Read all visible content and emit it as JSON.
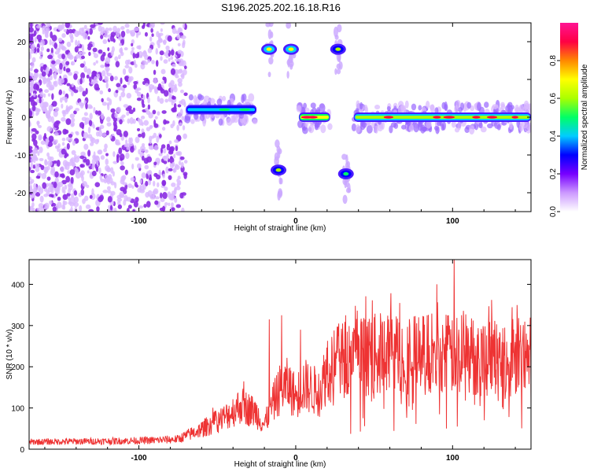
{
  "title": "S196.2025.202.16.18.R16",
  "chart_data": [
    {
      "type": "heatmap",
      "xlabel": "Height of straight line (km)",
      "ylabel": "Frequency (Hz)",
      "xlim": [
        -170,
        150
      ],
      "ylim": [
        -25,
        25
      ],
      "x_ticks": [
        "-100",
        "0",
        "100"
      ],
      "y_ticks": [
        "-20",
        "-10",
        "0",
        "10",
        "20"
      ],
      "colorbar": {
        "label": "Normalized spectral amplitude",
        "range": [
          0,
          1
        ],
        "ticks": [
          "0.0",
          "0.2",
          "0.4",
          "0.6",
          "0.8"
        ],
        "colors": [
          "#ffffff",
          "#cc99ff",
          "#7700ff",
          "#0000ff",
          "#00ccff",
          "#00ff66",
          "#aaff00",
          "#ffff00",
          "#ff8800",
          "#ff0044",
          "#ff1493"
        ]
      },
      "features": [
        {
          "name": "noise_region",
          "x_range": [
            -170,
            -70
          ],
          "y_range": [
            -25,
            25
          ],
          "level": 0.2
        },
        {
          "name": "band_a",
          "x_range": [
            -70,
            -25
          ],
          "y_center": 2,
          "level": 0.5
        },
        {
          "name": "spot_upper_1",
          "x": -17,
          "y": 18,
          "level": 0.7
        },
        {
          "name": "spot_upper_2",
          "x": -3,
          "y": 18,
          "level": 0.7
        },
        {
          "name": "spot_upper_3",
          "x": 27,
          "y": 18,
          "level": 0.6
        },
        {
          "name": "spot_lower_1",
          "x": -11,
          "y": -14,
          "level": 0.6
        },
        {
          "name": "spot_lower_2",
          "x": 32,
          "y": -15,
          "level": 0.5
        },
        {
          "name": "band_b",
          "x_range": [
            2,
            22
          ],
          "y_center": 0,
          "level": 0.9
        },
        {
          "name": "band_c",
          "x_range": [
            37,
            150
          ],
          "y_center": 0,
          "level": 0.85
        }
      ]
    },
    {
      "type": "line",
      "xlabel": "Height of straight line (km)",
      "ylabel": "SNR (10 * v/v)",
      "xlim": [
        -170,
        150
      ],
      "ylim": [
        0,
        460
      ],
      "x_ticks": [
        "-100",
        "0",
        "100"
      ],
      "y_ticks": [
        "0",
        "100",
        "200",
        "300",
        "400"
      ],
      "color": "#ee3333",
      "envelope": {
        "x": [
          -170,
          -120,
          -90,
          -75,
          -60,
          -45,
          -35,
          -25,
          -20,
          -15,
          -10,
          -5,
          0,
          5,
          10,
          15,
          20,
          30,
          40,
          60,
          80,
          90,
          100,
          120,
          150
        ],
        "y": [
          18,
          20,
          22,
          25,
          50,
          80,
          110,
          90,
          60,
          110,
          150,
          160,
          130,
          160,
          150,
          140,
          200,
          225,
          230,
          240,
          235,
          240,
          235,
          230,
          230
        ]
      },
      "peaks": [
        {
          "x": -17,
          "y": 315
        },
        {
          "x": -9,
          "y": 325
        },
        {
          "x": 3,
          "y": 290
        },
        {
          "x": 50,
          "y": 320
        },
        {
          "x": 90,
          "y": 400
        },
        {
          "x": 101,
          "y": 460
        },
        {
          "x": 140,
          "y": 260
        }
      ]
    }
  ]
}
